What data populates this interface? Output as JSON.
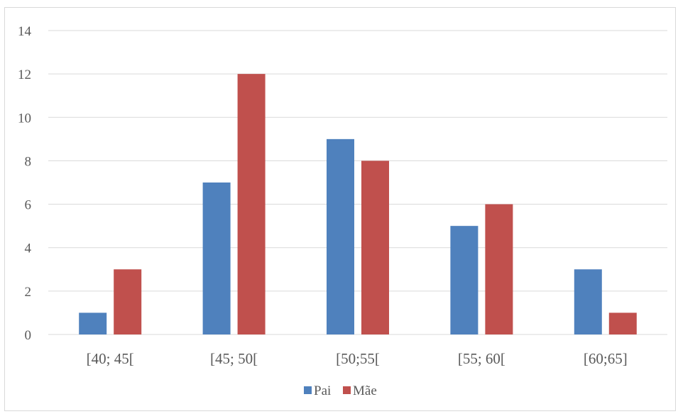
{
  "chart_data": {
    "type": "bar",
    "categories": [
      "[40; 45[",
      "[45; 50[",
      "[50;55[",
      "[55; 60[",
      "[60;65]"
    ],
    "series": [
      {
        "name": "Pai",
        "values": [
          1,
          7,
          9,
          5,
          3
        ],
        "color": "#4f81bd"
      },
      {
        "name": "Mãe",
        "values": [
          3,
          12,
          8,
          6,
          1
        ],
        "color": "#c0504d"
      }
    ],
    "yticks": [
      "0",
      "2",
      "4",
      "6",
      "8",
      "10",
      "12",
      "14"
    ],
    "ylim": [
      0,
      14
    ],
    "grid": true,
    "legend_position": "bottom",
    "gridline_color": "#d9d9d9"
  }
}
